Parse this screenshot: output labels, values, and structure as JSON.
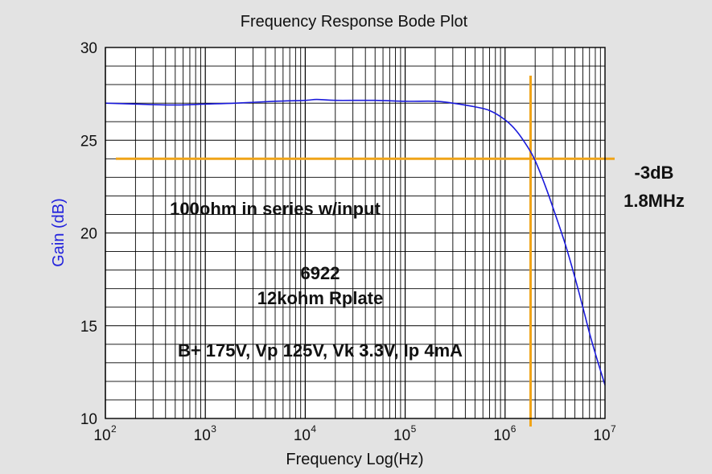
{
  "chart_data": {
    "type": "line",
    "title": "Frequency Response Bode Plot",
    "xlabel": "Frequency Log(Hz)",
    "ylabel": "Gain (dB)",
    "x_scale": "log",
    "xlim": [
      100,
      10000000
    ],
    "ylim": [
      10,
      30
    ],
    "grid": true,
    "legend": "none",
    "x_ticks": [
      {
        "base": "10",
        "exp": "2"
      },
      {
        "base": "10",
        "exp": "3"
      },
      {
        "base": "10",
        "exp": "4"
      },
      {
        "base": "10",
        "exp": "5"
      },
      {
        "base": "10",
        "exp": "6"
      },
      {
        "base": "10",
        "exp": "7"
      }
    ],
    "y_ticks": [
      "10",
      "15",
      "20",
      "25",
      "30"
    ],
    "series": [
      {
        "color": "#1a1adb",
        "x": [
          100,
          200,
          500,
          1000,
          2000,
          5000,
          10000,
          13000,
          20000,
          50000,
          100000,
          200000,
          300000,
          500000,
          700000,
          1000000,
          1300000,
          1700000,
          2000000,
          2500000,
          3000000,
          4000000,
          5000000,
          6000000,
          7000000,
          8000000,
          10000000
        ],
        "y": [
          27.0,
          26.95,
          26.9,
          26.95,
          27.0,
          27.1,
          27.15,
          27.2,
          27.15,
          27.15,
          27.1,
          27.1,
          27.0,
          26.8,
          26.6,
          26.1,
          25.5,
          24.6,
          23.9,
          22.6,
          21.4,
          19.4,
          17.6,
          16.0,
          14.6,
          13.5,
          11.8
        ]
      }
    ],
    "reference_lines": {
      "color": "#f0a418",
      "horizontal_y": 24,
      "vertical_x": 1800000
    },
    "annotations": {
      "cutoff_db": "-3dB",
      "cutoff_freq": "1.8MHz",
      "note_series": "100ohm in series w/input",
      "note_tube": "6922",
      "note_plate": "12kohm Rplate",
      "note_bias": "B+ 175V, Vp 125V, Vk 3.3V, Ip 4mA"
    }
  }
}
